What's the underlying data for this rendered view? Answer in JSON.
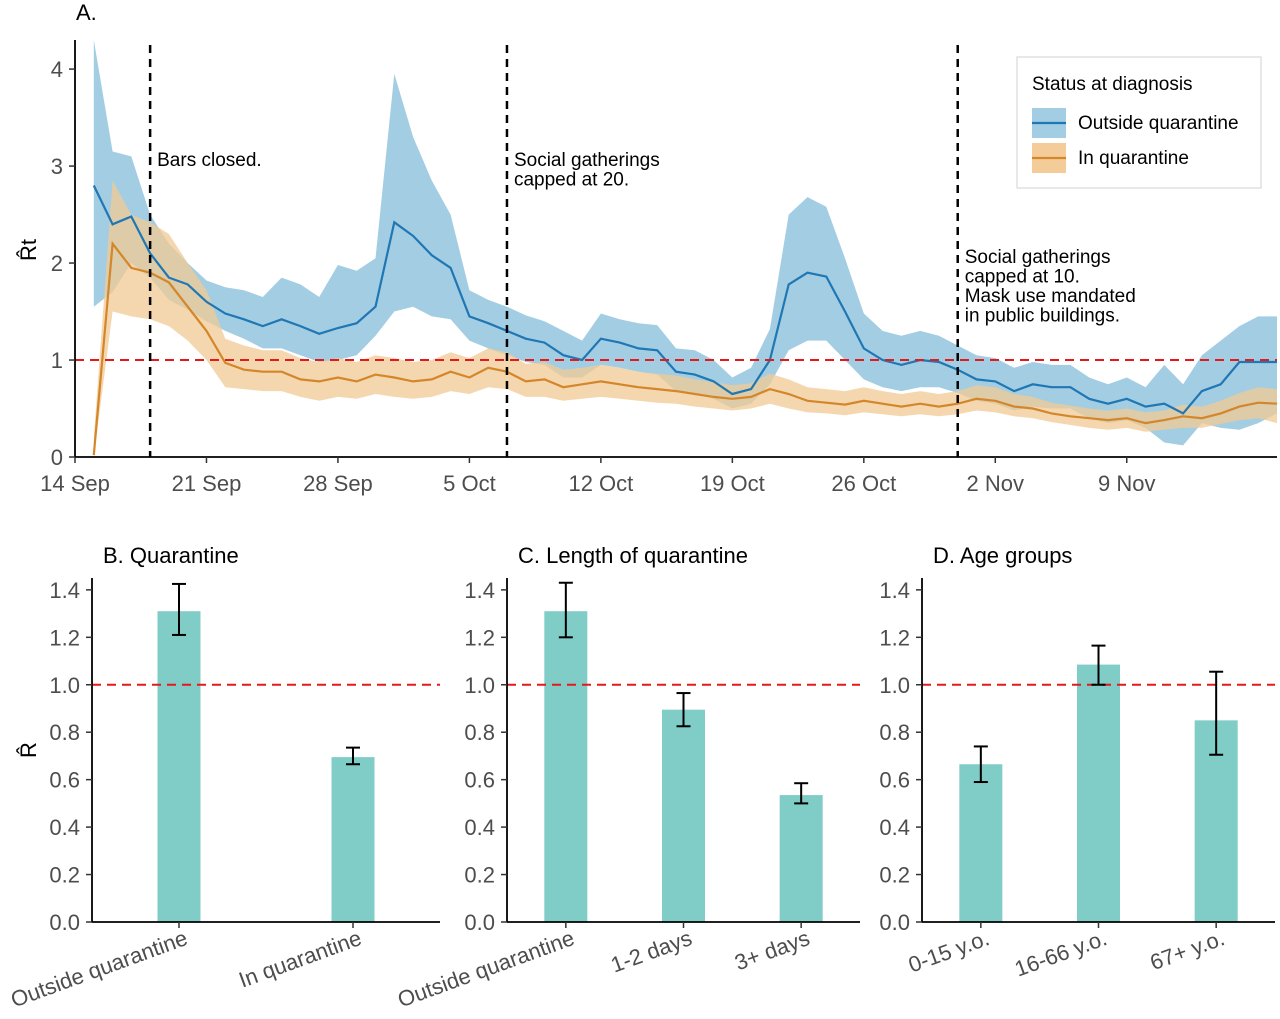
{
  "colors": {
    "outside": "#1f77b4",
    "outside_band": "#9ecae1",
    "inquar": "#d4862a",
    "inquar_band": "#f2c994",
    "bar": "#80ccc7",
    "reference": "#e31a1c",
    "vline": "#000000"
  },
  "chart_data": [
    {
      "panel": "A",
      "type": "line",
      "title": "A.",
      "ylabel": "R̂t",
      "xlabel": "",
      "ylim": [
        0,
        4.3
      ],
      "yticks": [
        0,
        1,
        2,
        3,
        4
      ],
      "xlim": [
        "2020-09-14",
        "2020-11-17"
      ],
      "xticks": [
        {
          "date": "2020-09-14",
          "label": "14 Sep"
        },
        {
          "date": "2020-09-21",
          "label": "21 Sep"
        },
        {
          "date": "2020-09-28",
          "label": "28 Sep"
        },
        {
          "date": "2020-10-05",
          "label": "5 Oct"
        },
        {
          "date": "2020-10-12",
          "label": "12 Oct"
        },
        {
          "date": "2020-10-19",
          "label": "19 Oct"
        },
        {
          "date": "2020-10-26",
          "label": "26 Oct"
        },
        {
          "date": "2020-11-02",
          "label": "2 Nov"
        },
        {
          "date": "2020-11-09",
          "label": "9 Nov"
        }
      ],
      "reference_line": 1,
      "grid": false,
      "legend": {
        "title": "Status at diagnosis",
        "position": "top-right",
        "entries": [
          "Outside quarantine",
          "In quarantine"
        ]
      },
      "vlines": [
        {
          "date": "2020-09-18",
          "label_lines": [
            "Bars closed."
          ]
        },
        {
          "date": "2020-10-07",
          "label_lines": [
            "Social gatherings",
            "capped at 20."
          ]
        },
        {
          "date": "2020-10-31",
          "label_lines": [
            "Social gatherings",
            "capped at 10.",
            "Mask use mandated",
            "in public buildings."
          ]
        }
      ],
      "x": [
        "2020-09-15",
        "2020-09-16",
        "2020-09-17",
        "2020-09-18",
        "2020-09-19",
        "2020-09-20",
        "2020-09-21",
        "2020-09-22",
        "2020-09-23",
        "2020-09-24",
        "2020-09-25",
        "2020-09-26",
        "2020-09-27",
        "2020-09-28",
        "2020-09-29",
        "2020-09-30",
        "2020-10-01",
        "2020-10-02",
        "2020-10-03",
        "2020-10-04",
        "2020-10-05",
        "2020-10-06",
        "2020-10-07",
        "2020-10-08",
        "2020-10-09",
        "2020-10-10",
        "2020-10-11",
        "2020-10-12",
        "2020-10-13",
        "2020-10-14",
        "2020-10-15",
        "2020-10-16",
        "2020-10-17",
        "2020-10-18",
        "2020-10-19",
        "2020-10-20",
        "2020-10-21",
        "2020-10-22",
        "2020-10-23",
        "2020-10-24",
        "2020-10-25",
        "2020-10-26",
        "2020-10-27",
        "2020-10-28",
        "2020-10-29",
        "2020-10-30",
        "2020-10-31",
        "2020-11-01",
        "2020-11-02",
        "2020-11-03",
        "2020-11-04",
        "2020-11-05",
        "2020-11-06",
        "2020-11-07",
        "2020-11-08",
        "2020-11-09",
        "2020-11-10",
        "2020-11-11",
        "2020-11-12",
        "2020-11-13",
        "2020-11-14",
        "2020-11-15",
        "2020-11-16",
        "2020-11-17"
      ],
      "series": [
        {
          "name": "Outside quarantine",
          "values": [
            2.8,
            2.4,
            2.48,
            2.1,
            1.85,
            1.78,
            1.6,
            1.48,
            1.42,
            1.35,
            1.42,
            1.35,
            1.27,
            1.33,
            1.38,
            1.55,
            2.42,
            2.28,
            2.08,
            1.95,
            1.45,
            1.38,
            1.3,
            1.22,
            1.18,
            1.05,
            1.0,
            1.22,
            1.18,
            1.12,
            1.1,
            0.88,
            0.85,
            0.78,
            0.65,
            0.7,
            1.0,
            1.78,
            1.9,
            1.86,
            1.5,
            1.12,
            1.0,
            0.95,
            1.0,
            0.98,
            0.9,
            0.8,
            0.78,
            0.68,
            0.75,
            0.72,
            0.72,
            0.6,
            0.55,
            0.6,
            0.52,
            0.55,
            0.45,
            0.68,
            0.75,
            0.98,
            0.98,
            0.98
          ],
          "lower": [
            1.55,
            1.7,
            2.0,
            1.85,
            1.62,
            1.52,
            1.4,
            1.3,
            1.22,
            1.12,
            1.12,
            1.05,
            0.98,
            1.0,
            1.05,
            1.25,
            1.5,
            1.55,
            1.45,
            1.42,
            1.2,
            1.12,
            1.05,
            0.98,
            0.95,
            0.82,
            0.82,
            0.95,
            0.92,
            0.88,
            0.85,
            0.68,
            0.65,
            0.6,
            0.5,
            0.55,
            0.75,
            1.1,
            1.2,
            1.2,
            1.0,
            0.8,
            0.72,
            0.68,
            0.72,
            0.72,
            0.66,
            0.58,
            0.55,
            0.48,
            0.52,
            0.5,
            0.5,
            0.4,
            0.35,
            0.38,
            0.3,
            0.15,
            0.12,
            0.35,
            0.3,
            0.28,
            0.35,
            0.45
          ],
          "upper": [
            4.3,
            3.15,
            3.1,
            2.5,
            2.2,
            2.0,
            1.82,
            1.75,
            1.72,
            1.65,
            1.85,
            1.78,
            1.65,
            1.98,
            1.92,
            2.05,
            3.95,
            3.3,
            2.85,
            2.5,
            1.72,
            1.62,
            1.55,
            1.46,
            1.4,
            1.3,
            1.2,
            1.48,
            1.42,
            1.38,
            1.36,
            1.12,
            1.1,
            1.0,
            0.82,
            0.92,
            1.32,
            2.5,
            2.68,
            2.58,
            2.05,
            1.48,
            1.3,
            1.25,
            1.3,
            1.25,
            1.15,
            1.05,
            1.02,
            0.92,
            0.98,
            0.95,
            0.95,
            0.82,
            0.75,
            0.82,
            0.72,
            0.95,
            0.75,
            1.05,
            1.2,
            1.35,
            1.45,
            1.45
          ]
        },
        {
          "name": "In quarantine",
          "values": [
            0.02,
            2.2,
            1.95,
            1.9,
            1.8,
            1.55,
            1.3,
            0.97,
            0.9,
            0.88,
            0.88,
            0.8,
            0.78,
            0.82,
            0.78,
            0.85,
            0.82,
            0.78,
            0.8,
            0.88,
            0.82,
            0.92,
            0.88,
            0.78,
            0.8,
            0.72,
            0.75,
            0.78,
            0.75,
            0.72,
            0.7,
            0.68,
            0.65,
            0.62,
            0.6,
            0.62,
            0.7,
            0.65,
            0.58,
            0.56,
            0.54,
            0.58,
            0.55,
            0.52,
            0.55,
            0.52,
            0.55,
            0.6,
            0.58,
            0.52,
            0.5,
            0.45,
            0.42,
            0.4,
            0.38,
            0.4,
            0.35,
            0.38,
            0.42,
            0.4,
            0.45,
            0.52,
            0.56,
            0.55
          ],
          "lower": [
            0.0,
            1.5,
            1.45,
            1.42,
            1.35,
            1.2,
            1.0,
            0.72,
            0.7,
            0.68,
            0.68,
            0.62,
            0.58,
            0.62,
            0.6,
            0.65,
            0.62,
            0.6,
            0.62,
            0.68,
            0.65,
            0.72,
            0.7,
            0.62,
            0.62,
            0.58,
            0.6,
            0.62,
            0.6,
            0.58,
            0.56,
            0.55,
            0.52,
            0.5,
            0.48,
            0.5,
            0.55,
            0.5,
            0.46,
            0.45,
            0.43,
            0.46,
            0.44,
            0.42,
            0.44,
            0.42,
            0.44,
            0.48,
            0.46,
            0.42,
            0.4,
            0.36,
            0.33,
            0.3,
            0.28,
            0.3,
            0.26,
            0.28,
            0.3,
            0.3,
            0.34,
            0.38,
            0.4,
            0.35
          ],
          "upper": [
            0.2,
            2.85,
            2.5,
            2.42,
            2.3,
            2.0,
            1.72,
            1.22,
            1.15,
            1.1,
            1.1,
            1.02,
            0.98,
            1.02,
            0.98,
            1.05,
            1.02,
            0.98,
            1.0,
            1.08,
            1.02,
            1.12,
            1.08,
            0.96,
            0.98,
            0.9,
            0.92,
            0.95,
            0.92,
            0.88,
            0.86,
            0.84,
            0.8,
            0.77,
            0.74,
            0.76,
            0.86,
            0.8,
            0.72,
            0.7,
            0.68,
            0.72,
            0.68,
            0.65,
            0.68,
            0.65,
            0.68,
            0.74,
            0.72,
            0.65,
            0.62,
            0.56,
            0.53,
            0.5,
            0.48,
            0.5,
            0.46,
            0.48,
            0.54,
            0.52,
            0.58,
            0.66,
            0.72,
            0.7
          ]
        }
      ]
    },
    {
      "panel": "B",
      "type": "bar",
      "title": "B. Quarantine",
      "ylabel": "R̂",
      "ylim": [
        0,
        1.45
      ],
      "yticks": [
        "0.0",
        "0.2",
        "0.4",
        "0.6",
        "0.8",
        "1.0",
        "1.2",
        "1.4"
      ],
      "reference_line": 1.0,
      "categories": [
        "Outside quarantine",
        "In quarantine"
      ],
      "values": [
        1.31,
        0.695
      ],
      "err_low": [
        1.21,
        0.665
      ],
      "err_high": [
        1.425,
        0.735
      ]
    },
    {
      "panel": "C",
      "type": "bar",
      "title": "C. Length of quarantine",
      "ylabel": "",
      "ylim": [
        0,
        1.45
      ],
      "yticks": [
        "0.0",
        "0.2",
        "0.4",
        "0.6",
        "0.8",
        "1.0",
        "1.2",
        "1.4"
      ],
      "reference_line": 1.0,
      "categories": [
        "Outside quarantine",
        "1-2 days",
        "3+ days"
      ],
      "values": [
        1.31,
        0.895,
        0.535
      ],
      "err_low": [
        1.2,
        0.825,
        0.5
      ],
      "err_high": [
        1.43,
        0.965,
        0.585
      ]
    },
    {
      "panel": "D",
      "type": "bar",
      "title": "D. Age groups",
      "ylabel": "",
      "ylim": [
        0,
        1.45
      ],
      "yticks": [
        "0.0",
        "0.2",
        "0.4",
        "0.6",
        "0.8",
        "1.0",
        "1.2",
        "1.4"
      ],
      "reference_line": 1.0,
      "categories": [
        "0-15 y.o.",
        "16-66 y.o.",
        "67+ y.o."
      ],
      "values": [
        0.665,
        1.085,
        0.85
      ],
      "err_low": [
        0.59,
        1.0,
        0.705
      ],
      "err_high": [
        0.74,
        1.165,
        1.055
      ]
    }
  ]
}
